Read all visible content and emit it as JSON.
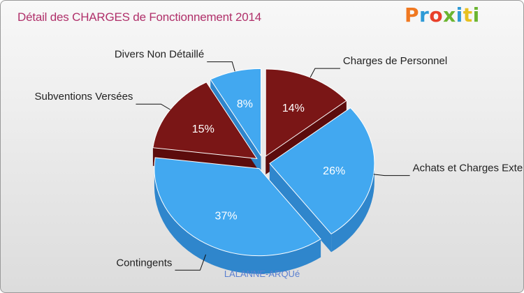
{
  "header": {
    "title": "Détail des CHARGES de Fonctionnement 2014",
    "logo": "Proxiti"
  },
  "colors": {
    "logo_letters": [
      "#f07820",
      "#2f9ad6",
      "#e8402a",
      "#6bb531",
      "#2f9ad6",
      "#e8c020",
      "#6bb531"
    ],
    "blue": "#42a8f0",
    "blue_side": "#2f86cc",
    "darkred": "#7a1616",
    "darkred_side": "#5c0c0c",
    "title": "#b0306a",
    "subtitle": "#5a7fd0"
  },
  "chart_data": {
    "type": "pie",
    "title": "Détail des CHARGES de Fonctionnement 2014",
    "subtitle": "LALANNE-ARQUé",
    "slices": [
      {
        "label": "Charges de Personnel",
        "value": 14,
        "pct_label": "14%",
        "color": "darkred"
      },
      {
        "label": "Achats et Charges Externes",
        "value": 26,
        "pct_label": "26%",
        "color": "blue"
      },
      {
        "label": "Contingents",
        "value": 37,
        "pct_label": "37%",
        "color": "blue"
      },
      {
        "label": "Subventions Versées",
        "value": 15,
        "pct_label": "15%",
        "color": "darkred"
      },
      {
        "label": "Divers Non Détaillé",
        "value": 8,
        "pct_label": "8%",
        "color": "blue"
      }
    ]
  }
}
